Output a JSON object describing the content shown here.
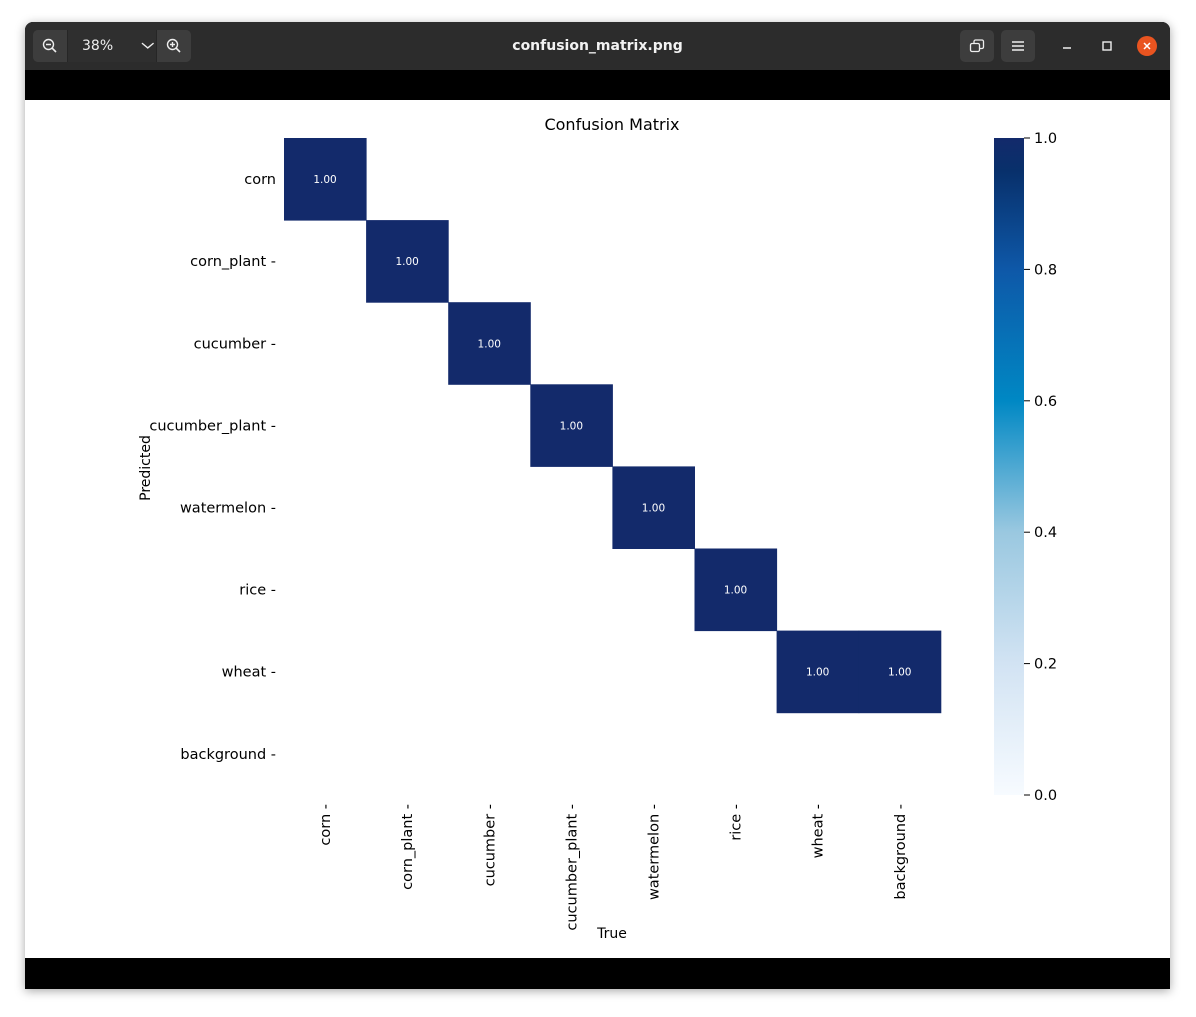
{
  "window": {
    "title": "confusion_matrix.png",
    "zoom_level": "38%"
  },
  "icons": {
    "zoom_out": "zoom-out-icon",
    "zoom_menu": "chevron-down-icon",
    "zoom_in": "zoom-in-icon",
    "view_mode": "window-restore-icon",
    "main_menu": "hamburger-menu-icon",
    "minimize": "minimize-icon",
    "maximize": "maximize-icon",
    "close": "close-icon"
  },
  "colors": {
    "cell_max": "#132a6b",
    "cell_zero": "#f7fbff",
    "close_button": "#e95420",
    "titlebar": "#2c2c2c"
  },
  "chart_data": {
    "type": "heatmap",
    "title": "Confusion Matrix",
    "xlabel": "True",
    "ylabel": "Predicted",
    "x_categories": [
      "corn",
      "corn_plant",
      "cucumber",
      "cucumber_plant",
      "watermelon",
      "rice",
      "wheat",
      "background"
    ],
    "y_categories": [
      "corn",
      "corn_plant",
      "cucumber",
      "cucumber_plant",
      "watermelon",
      "rice",
      "wheat",
      "background"
    ],
    "values": [
      [
        1.0,
        null,
        null,
        null,
        null,
        null,
        null,
        null
      ],
      [
        null,
        1.0,
        null,
        null,
        null,
        null,
        null,
        null
      ],
      [
        null,
        null,
        1.0,
        null,
        null,
        null,
        null,
        null
      ],
      [
        null,
        null,
        null,
        1.0,
        null,
        null,
        null,
        null
      ],
      [
        null,
        null,
        null,
        null,
        1.0,
        null,
        null,
        null
      ],
      [
        null,
        null,
        null,
        null,
        null,
        1.0,
        null,
        null
      ],
      [
        null,
        null,
        null,
        null,
        null,
        null,
        1.0,
        1.0
      ],
      [
        null,
        null,
        null,
        null,
        null,
        null,
        null,
        null
      ]
    ],
    "value_format": "0.00",
    "colorbar": {
      "range": [
        0.0,
        1.0
      ],
      "ticks": [
        "0.0",
        "0.2",
        "0.4",
        "0.6",
        "0.8",
        "1.0"
      ],
      "colormap": "Blues",
      "placement": "right"
    }
  }
}
